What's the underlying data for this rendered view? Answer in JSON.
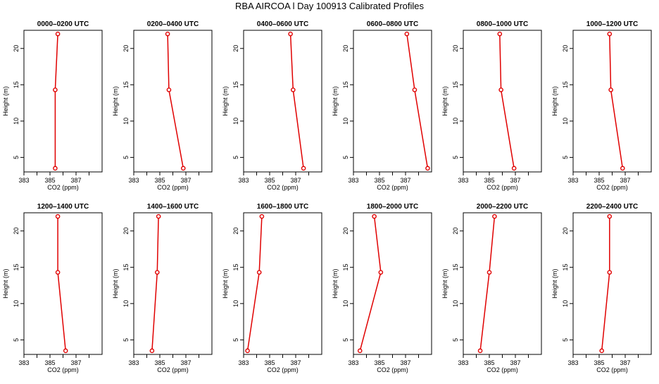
{
  "figure_title": "RBA AIRCOA l  Day 100913  Calibrated Profiles",
  "colors": {
    "line": "#e00000",
    "axis": "#000000"
  },
  "chart_data": [
    {
      "type": "line",
      "title": "0000–0200 UTC",
      "xlabel": "CO2 (ppm)",
      "ylabel": "Height (m)",
      "xlim": [
        383,
        389
      ],
      "ylim": [
        3,
        22.5
      ],
      "xticks": [
        383,
        385,
        387
      ],
      "yticks": [
        5,
        10,
        15,
        20
      ],
      "x": [
        385.6,
        385.4,
        385.4
      ],
      "y": [
        22,
        14.3,
        3.5
      ]
    },
    {
      "type": "line",
      "title": "0200–0400 UTC",
      "xlabel": "CO2 (ppm)",
      "ylabel": "Height (m)",
      "xlim": [
        383,
        389
      ],
      "ylim": [
        3,
        22.5
      ],
      "xticks": [
        383,
        385,
        387
      ],
      "yticks": [
        5,
        10,
        15,
        20
      ],
      "x": [
        385.6,
        385.7,
        386.8
      ],
      "y": [
        22,
        14.3,
        3.5
      ]
    },
    {
      "type": "line",
      "title": "0400–0600 UTC",
      "xlabel": "CO2 (ppm)",
      "ylabel": "Height (m)",
      "xlim": [
        383,
        389
      ],
      "ylim": [
        3,
        22.5
      ],
      "xticks": [
        383,
        385,
        387
      ],
      "yticks": [
        5,
        10,
        15,
        20
      ],
      "x": [
        386.6,
        386.8,
        387.6
      ],
      "y": [
        22,
        14.3,
        3.5
      ]
    },
    {
      "type": "line",
      "title": "0600–0800 UTC",
      "xlabel": "CO2 (ppm)",
      "ylabel": "Height (m)",
      "xlim": [
        383,
        389
      ],
      "ylim": [
        3,
        22.5
      ],
      "xticks": [
        383,
        385,
        387
      ],
      "yticks": [
        5,
        10,
        15,
        20
      ],
      "x": [
        387.1,
        387.7,
        388.7
      ],
      "y": [
        22,
        14.3,
        3.5
      ]
    },
    {
      "type": "line",
      "title": "0800–1000 UTC",
      "xlabel": "CO2 (ppm)",
      "ylabel": "Height (m)",
      "xlim": [
        383,
        389
      ],
      "ylim": [
        3,
        22.5
      ],
      "xticks": [
        383,
        385,
        387
      ],
      "yticks": [
        5,
        10,
        15,
        20
      ],
      "x": [
        385.8,
        385.9,
        386.9
      ],
      "y": [
        22,
        14.3,
        3.5
      ]
    },
    {
      "type": "line",
      "title": "1000–1200 UTC",
      "xlabel": "CO2 (ppm)",
      "ylabel": "Height (m)",
      "xlim": [
        383,
        389
      ],
      "ylim": [
        3,
        22.5
      ],
      "xticks": [
        383,
        385,
        387
      ],
      "yticks": [
        5,
        10,
        15,
        20
      ],
      "x": [
        385.8,
        385.9,
        386.8
      ],
      "y": [
        22,
        14.3,
        3.5
      ]
    },
    {
      "type": "line",
      "title": "1200–1400 UTC",
      "xlabel": "CO2 (ppm)",
      "ylabel": "Height (m)",
      "xlim": [
        383,
        389
      ],
      "ylim": [
        3,
        22.5
      ],
      "xticks": [
        383,
        385,
        387
      ],
      "yticks": [
        5,
        10,
        15,
        20
      ],
      "x": [
        385.6,
        385.6,
        386.2
      ],
      "y": [
        22,
        14.3,
        3.5
      ]
    },
    {
      "type": "line",
      "title": "1400–1600 UTC",
      "xlabel": "CO2 (ppm)",
      "ylabel": "Height (m)",
      "xlim": [
        383,
        389
      ],
      "ylim": [
        3,
        22.5
      ],
      "xticks": [
        383,
        385,
        387
      ],
      "yticks": [
        5,
        10,
        15,
        20
      ],
      "x": [
        384.9,
        384.8,
        384.4
      ],
      "y": [
        22,
        14.3,
        3.5
      ]
    },
    {
      "type": "line",
      "title": "1600–1800 UTC",
      "xlabel": "CO2 (ppm)",
      "ylabel": "Height (m)",
      "xlim": [
        383,
        389
      ],
      "ylim": [
        3,
        22.5
      ],
      "xticks": [
        383,
        385,
        387
      ],
      "yticks": [
        5,
        10,
        15,
        20
      ],
      "x": [
        384.4,
        384.2,
        383.3
      ],
      "y": [
        22,
        14.3,
        3.5
      ]
    },
    {
      "type": "line",
      "title": "1800–2000 UTC",
      "xlabel": "CO2 (ppm)",
      "ylabel": "Height (m)",
      "xlim": [
        383,
        389
      ],
      "ylim": [
        3,
        22.5
      ],
      "xticks": [
        383,
        385,
        387
      ],
      "yticks": [
        5,
        10,
        15,
        20
      ],
      "x": [
        384.6,
        385.1,
        383.5
      ],
      "y": [
        22,
        14.3,
        3.5
      ]
    },
    {
      "type": "line",
      "title": "2000–2200 UTC",
      "xlabel": "CO2 (ppm)",
      "ylabel": "Height (m)",
      "xlim": [
        383,
        389
      ],
      "ylim": [
        3,
        22.5
      ],
      "xticks": [
        383,
        385,
        387
      ],
      "yticks": [
        5,
        10,
        15,
        20
      ],
      "x": [
        385.4,
        385.0,
        384.3
      ],
      "y": [
        22,
        14.3,
        3.5
      ]
    },
    {
      "type": "line",
      "title": "2200–2400 UTC",
      "xlabel": "CO2 (ppm)",
      "ylabel": "Height (m)",
      "xlim": [
        383,
        389
      ],
      "ylim": [
        3,
        22.5
      ],
      "xticks": [
        383,
        385,
        387
      ],
      "yticks": [
        5,
        10,
        15,
        20
      ],
      "x": [
        385.8,
        385.8,
        385.2
      ],
      "y": [
        22,
        14.3,
        3.5
      ]
    }
  ]
}
